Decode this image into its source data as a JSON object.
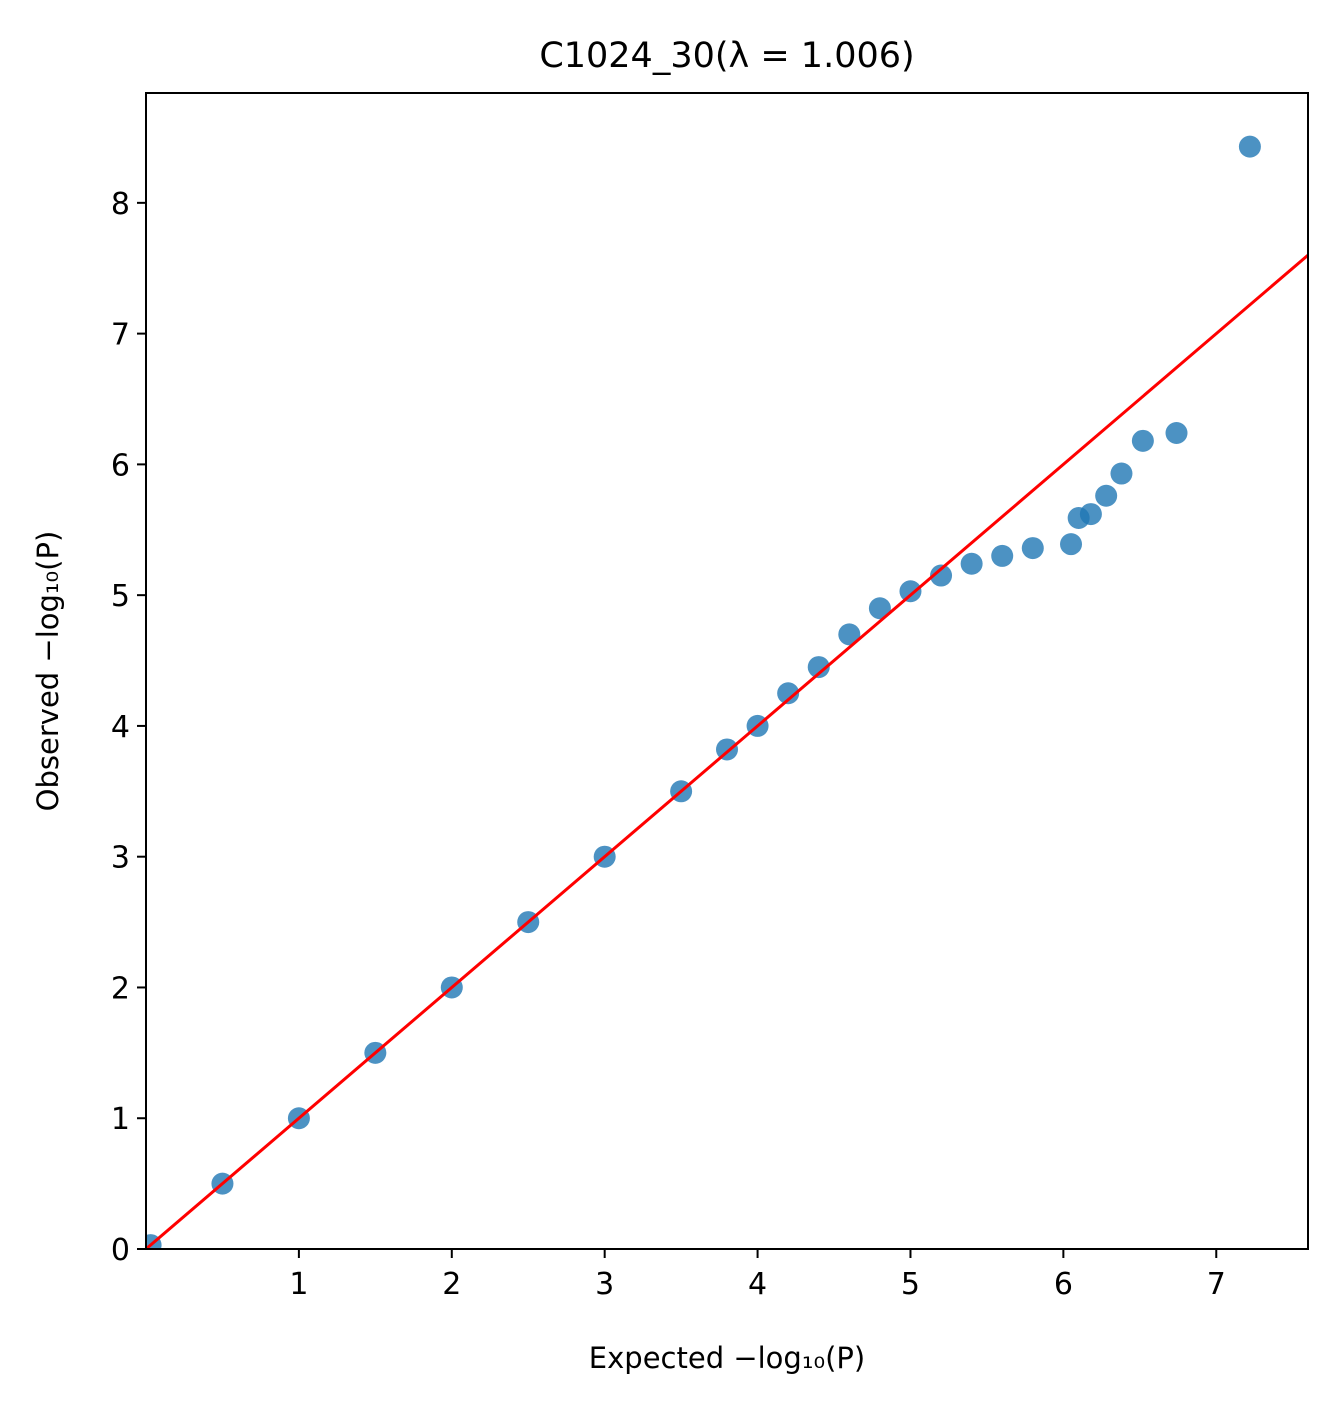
{
  "chart_data": {
    "type": "scatter",
    "title": "C1024_30(λ = 1.006)",
    "xlabel": "Expected −log₁₀(P)",
    "ylabel": "Observed −log₁₀(P)",
    "xlim": [
      0,
      7.6
    ],
    "ylim": [
      0,
      8.84
    ],
    "xticks": [
      "1",
      "2",
      "3",
      "4",
      "5",
      "6",
      "7"
    ],
    "yticks": [
      "0",
      "1",
      "2",
      "3",
      "4",
      "5",
      "6",
      "7",
      "8"
    ],
    "grid": false,
    "legend": "none",
    "series": [
      {
        "values": [
          {
            "x": 0.03,
            "y": 0.03
          },
          {
            "x": 0.5,
            "y": 0.5
          },
          {
            "x": 1.0,
            "y": 1.0
          },
          {
            "x": 1.5,
            "y": 1.5
          },
          {
            "x": 2.0,
            "y": 2.0
          },
          {
            "x": 2.5,
            "y": 2.5
          },
          {
            "x": 3.0,
            "y": 3.0
          },
          {
            "x": 3.5,
            "y": 3.5
          },
          {
            "x": 3.8,
            "y": 3.82
          },
          {
            "x": 4.0,
            "y": 4.0
          },
          {
            "x": 4.2,
            "y": 4.25
          },
          {
            "x": 4.4,
            "y": 4.45
          },
          {
            "x": 4.6,
            "y": 4.7
          },
          {
            "x": 4.8,
            "y": 4.9
          },
          {
            "x": 5.0,
            "y": 5.03
          },
          {
            "x": 5.2,
            "y": 5.15
          },
          {
            "x": 5.4,
            "y": 5.24
          },
          {
            "x": 5.6,
            "y": 5.3
          },
          {
            "x": 5.8,
            "y": 5.36
          },
          {
            "x": 6.05,
            "y": 5.39
          },
          {
            "x": 6.1,
            "y": 5.59
          },
          {
            "x": 6.18,
            "y": 5.62
          },
          {
            "x": 6.28,
            "y": 5.76
          },
          {
            "x": 6.38,
            "y": 5.93
          },
          {
            "x": 6.52,
            "y": 6.18
          },
          {
            "x": 6.74,
            "y": 6.24
          },
          {
            "x": 7.22,
            "y": 8.43
          }
        ]
      }
    ],
    "reference_line": {
      "x": [
        0,
        7.6
      ],
      "y": [
        0,
        7.6
      ]
    },
    "colors": {
      "points": "#1f77b4",
      "reference_line": "#ff0000"
    }
  }
}
